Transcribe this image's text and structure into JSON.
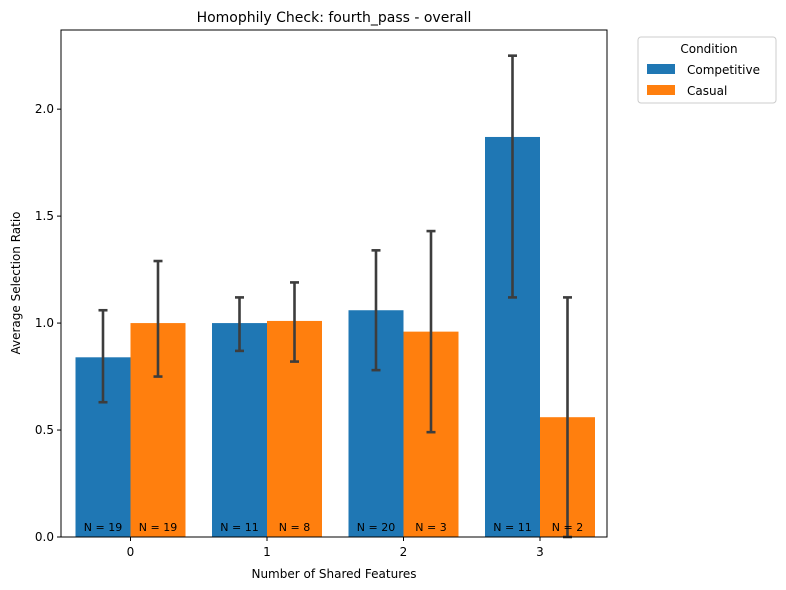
{
  "chart_data": {
    "type": "bar",
    "title": "Homophily Check: fourth_pass - overall",
    "xlabel": "Number of Shared Features",
    "ylabel": "Average Selection Ratio",
    "categories": [
      "0",
      "1",
      "2",
      "3"
    ],
    "ylim": [
      0,
      2.37
    ],
    "yticks": [
      0.0,
      0.5,
      1.0,
      1.5,
      2.0
    ],
    "ytick_labels": [
      "0.0",
      "0.5",
      "1.0",
      "1.5",
      "2.0"
    ],
    "grid": false,
    "legend": {
      "title": "Condition",
      "position": "outside-top-right"
    },
    "series": [
      {
        "name": "Competitive",
        "color": "#1f77b4",
        "values": [
          0.84,
          1.0,
          1.06,
          1.87
        ],
        "error_low": [
          0.63,
          0.87,
          0.78,
          1.12
        ],
        "error_high": [
          1.06,
          1.12,
          1.34,
          2.25
        ],
        "n_labels": [
          "N = 19",
          "N = 11",
          "N = 20",
          "N = 11"
        ]
      },
      {
        "name": "Casual",
        "color": "#ff7f0e",
        "values": [
          1.0,
          1.01,
          0.96,
          0.56
        ],
        "error_low": [
          0.75,
          0.82,
          0.49,
          0.0
        ],
        "error_high": [
          1.29,
          1.19,
          1.43,
          1.12
        ],
        "n_labels": [
          "N = 19",
          "N = 8",
          "N = 3",
          "N = 2"
        ]
      }
    ],
    "errorbar_color": "#3d3d3d"
  }
}
